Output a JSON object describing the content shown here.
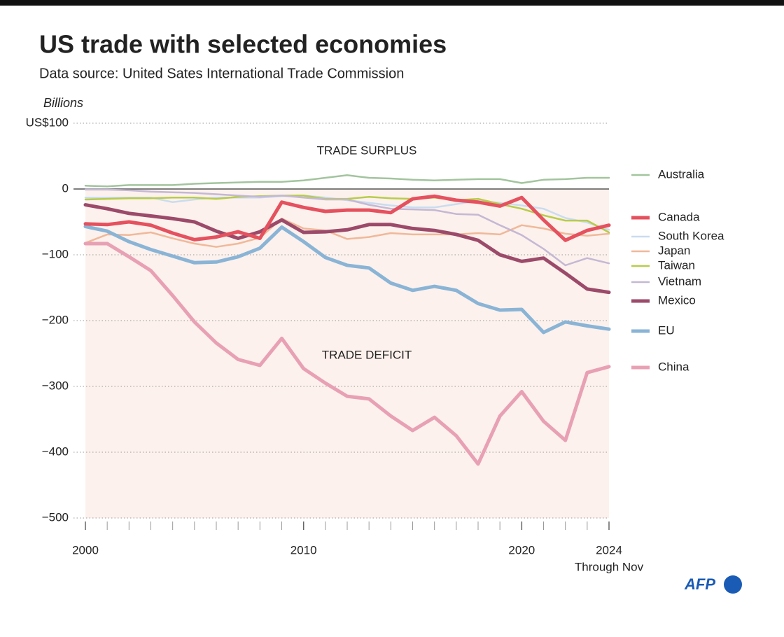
{
  "chart_data": {
    "type": "line",
    "title": "US trade with selected economies",
    "subtitle": "Data source: United Sates International Trade Commission",
    "y_label": "Billions",
    "annotations": [
      "TRADE SURPLUS",
      "TRADE DEFICIT",
      "Through Nov"
    ],
    "logo": "AFP",
    "x": [
      2000,
      2001,
      2002,
      2003,
      2004,
      2005,
      2006,
      2007,
      2008,
      2009,
      2010,
      2011,
      2012,
      2013,
      2014,
      2015,
      2016,
      2017,
      2018,
      2019,
      2020,
      2021,
      2022,
      2023,
      2024
    ],
    "xlim": [
      2000,
      2024
    ],
    "xticks": [
      2000,
      2010,
      2020,
      2024
    ],
    "ylim": [
      -500,
      100
    ],
    "yticks": [
      {
        "value": 100,
        "label": "US$100"
      },
      0,
      {
        "value": -100,
        "label": "−100"
      },
      {
        "value": -200,
        "label": "−200"
      },
      {
        "value": -300,
        "label": "−300"
      },
      {
        "value": -400,
        "label": "−400"
      },
      {
        "value": -500,
        "label": "−500"
      }
    ],
    "grid": true,
    "series": [
      {
        "name": "Australia",
        "color": "#a3c49e",
        "values": [
          5,
          4,
          6,
          6,
          6,
          8,
          9,
          10,
          11,
          11,
          13,
          17,
          21,
          17,
          16,
          14,
          13,
          14,
          15,
          15,
          9,
          14,
          15,
          17,
          17
        ]
      },
      {
        "name": "Canada",
        "color": "#e5515e",
        "values": [
          -53,
          -54,
          -50,
          -55,
          -67,
          -77,
          -73,
          -65,
          -75,
          -20,
          -28,
          -34,
          -32,
          -32,
          -36,
          -15,
          -11,
          -17,
          -20,
          -26,
          -13,
          -47,
          -78,
          -63,
          -55
        ]
      },
      {
        "name": "South Korea",
        "color": "#c9dcf0",
        "values": [
          -13,
          -13,
          -13,
          -13,
          -20,
          -16,
          -13,
          -13,
          -13,
          -11,
          -10,
          -13,
          -17,
          -21,
          -25,
          -28,
          -28,
          -23,
          -18,
          -21,
          -25,
          -30,
          -44,
          -51,
          -62
        ]
      },
      {
        "name": "Japan",
        "color": "#f0b89a",
        "values": [
          -82,
          -69,
          -70,
          -66,
          -75,
          -83,
          -88,
          -83,
          -74,
          -45,
          -60,
          -63,
          -76,
          -73,
          -67,
          -69,
          -69,
          -69,
          -67,
          -69,
          -55,
          -60,
          -68,
          -71,
          -68
        ]
      },
      {
        "name": "Taiwan",
        "color": "#b8cc4a",
        "values": [
          -16,
          -15,
          -14,
          -14,
          -13,
          -13,
          -15,
          -12,
          -11,
          -10,
          -10,
          -15,
          -15,
          -12,
          -14,
          -15,
          -13,
          -17,
          -15,
          -23,
          -30,
          -40,
          -48,
          -48,
          -66
        ]
      },
      {
        "name": "Vietnam",
        "color": "#c4b8d4",
        "values": [
          -1,
          -1,
          -2,
          -4,
          -5,
          -6,
          -8,
          -10,
          -12,
          -10,
          -13,
          -16,
          -16,
          -24,
          -30,
          -31,
          -32,
          -38,
          -39,
          -55,
          -70,
          -91,
          -116,
          -105,
          -113
        ]
      },
      {
        "name": "Mexico",
        "color": "#9c4a6a",
        "values": [
          -24,
          -30,
          -37,
          -41,
          -45,
          -50,
          -64,
          -75,
          -65,
          -47,
          -66,
          -65,
          -62,
          -54,
          -54,
          -60,
          -63,
          -69,
          -78,
          -100,
          -110,
          -105,
          -128,
          -152,
          -157
        ]
      },
      {
        "name": "EU",
        "color": "#8ab4d6",
        "values": [
          -57,
          -64,
          -80,
          -92,
          -102,
          -112,
          -111,
          -103,
          -90,
          -58,
          -80,
          -104,
          -116,
          -120,
          -143,
          -154,
          -148,
          -154,
          -174,
          -184,
          -183,
          -218,
          -202,
          -208,
          -213
        ]
      },
      {
        "name": "China",
        "color": "#e8a0b4",
        "values": [
          -83,
          -83,
          -103,
          -124,
          -162,
          -202,
          -234,
          -259,
          -268,
          -227,
          -273,
          -295,
          -315,
          -319,
          -345,
          -367,
          -347,
          -375,
          -418,
          -345,
          -308,
          -353,
          -382,
          -279,
          -270
        ]
      }
    ]
  }
}
